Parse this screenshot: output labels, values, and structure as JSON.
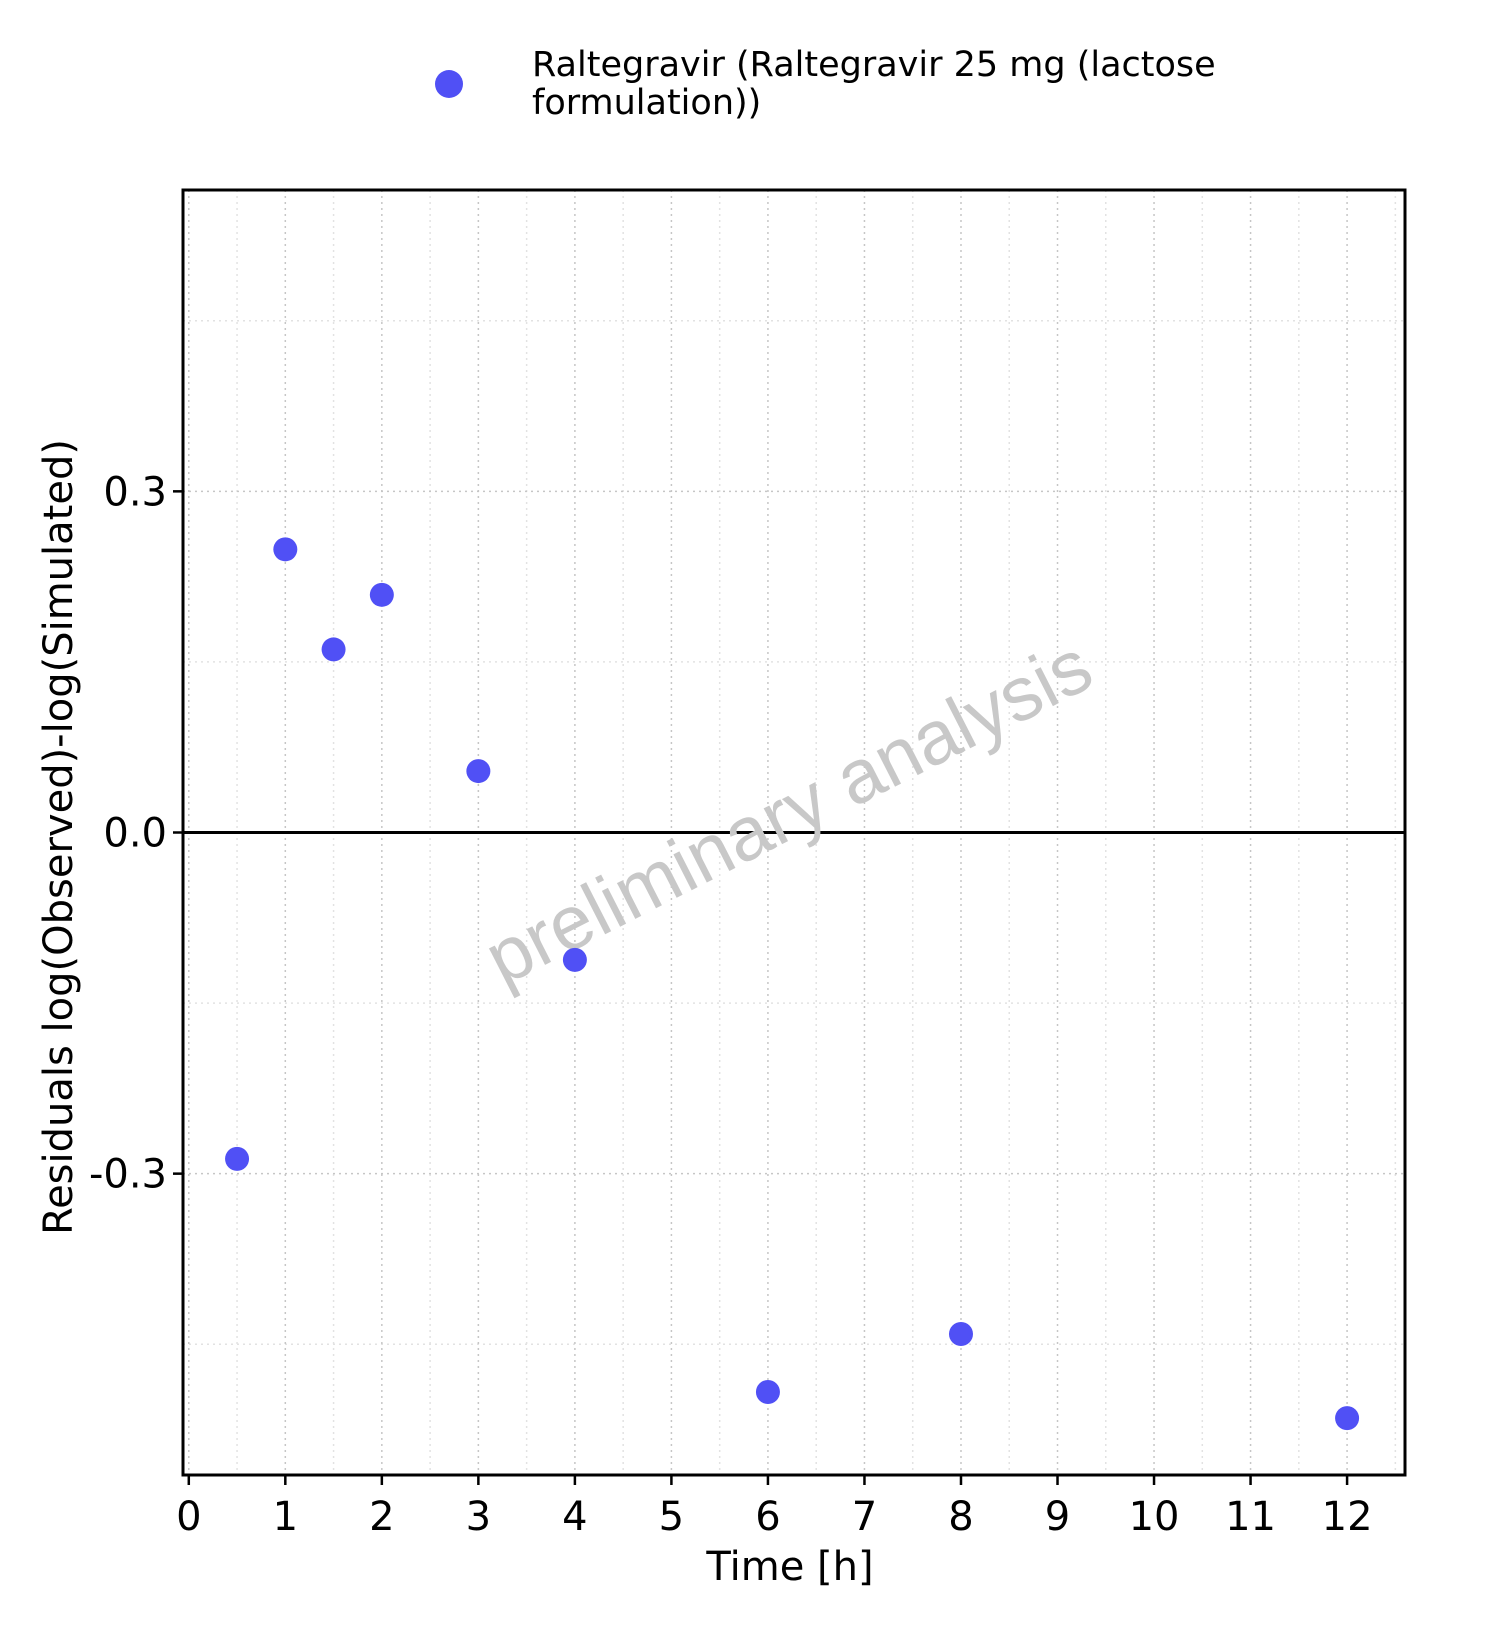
{
  "chart_data": {
    "type": "scatter",
    "title": "",
    "xlabel": "Time [h]",
    "ylabel": "Residuals log(Observed)-log(Simulated)",
    "xlim": [
      -0.06,
      12.6
    ],
    "ylim": [
      -0.565,
      0.565
    ],
    "x_ticks": [
      0,
      1,
      2,
      3,
      4,
      5,
      6,
      7,
      8,
      9,
      10,
      11,
      12
    ],
    "x_tick_labels": [
      "0",
      "1",
      "2",
      "3",
      "4",
      "5",
      "6",
      "7",
      "8",
      "9",
      "10",
      "11",
      "12"
    ],
    "x_minor_ticks": [
      0.5,
      1.5,
      2.5,
      3.5,
      4.5,
      5.5,
      6.5,
      7.5,
      8.5,
      9.5,
      10.5,
      11.5,
      12.5
    ],
    "y_ticks": [
      -0.3,
      0,
      0.3
    ],
    "y_tick_labels": [
      "-0.3",
      "0.0",
      "0.3"
    ],
    "y_minor_ticks": [
      -0.45,
      -0.15,
      0.15,
      0.45
    ],
    "reference_line_y": 0,
    "grid": true,
    "legend_position": "top",
    "series": [
      {
        "name": "Raltegravir (Raltegravir 25 mg (lactose formulation))",
        "legend_lines": [
          "Raltegravir (Raltegravir 25 mg (lactose",
          "formulation))"
        ],
        "color": "#5050F5",
        "x": [
          0.5,
          1,
          1.5,
          2,
          3,
          4,
          6,
          8,
          12
        ],
        "y": [
          -0.287,
          0.249,
          0.161,
          0.209,
          0.054,
          -0.112,
          -0.492,
          -0.441,
          -0.515
        ]
      }
    ]
  },
  "watermark": "preliminary analysis"
}
